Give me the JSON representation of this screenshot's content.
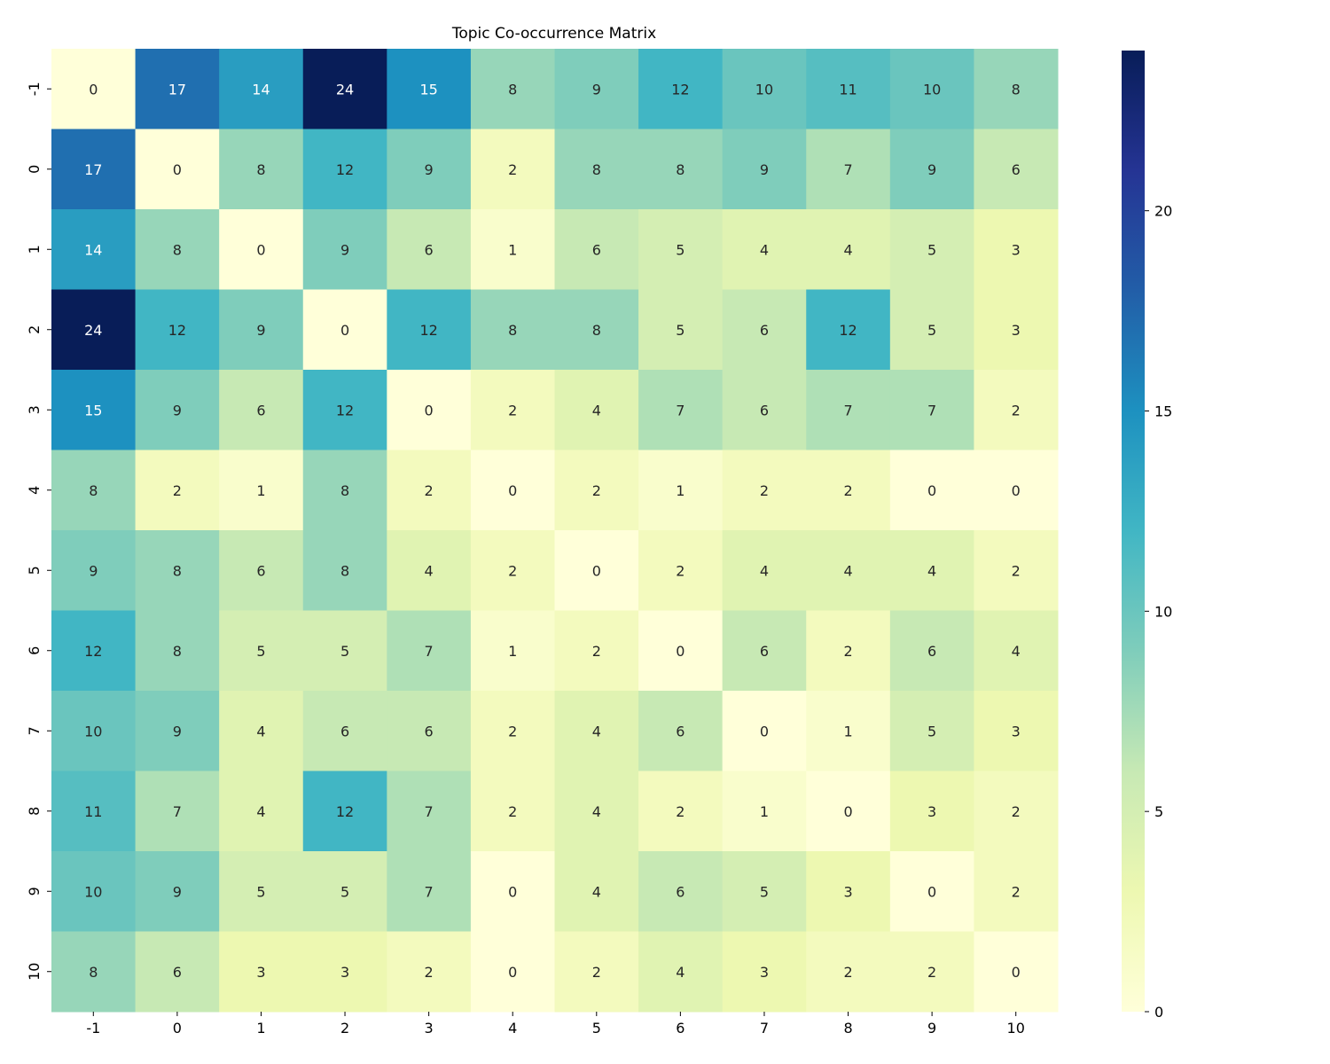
{
  "chart_data": {
    "type": "heatmap",
    "title": "Topic Co-occurrence Matrix",
    "xlabel": "",
    "ylabel": "",
    "x_labels": [
      "-1",
      "0",
      "1",
      "2",
      "3",
      "4",
      "5",
      "6",
      "7",
      "8",
      "9",
      "10"
    ],
    "y_labels": [
      "-1",
      "0",
      "1",
      "2",
      "3",
      "4",
      "5",
      "6",
      "7",
      "8",
      "9",
      "10"
    ],
    "values": [
      [
        0,
        17,
        14,
        24,
        15,
        8,
        9,
        12,
        10,
        11,
        10,
        8
      ],
      [
        17,
        0,
        8,
        12,
        9,
        2,
        8,
        8,
        9,
        7,
        9,
        6
      ],
      [
        14,
        8,
        0,
        9,
        6,
        1,
        6,
        5,
        4,
        4,
        5,
        3
      ],
      [
        24,
        12,
        9,
        0,
        12,
        8,
        8,
        5,
        6,
        12,
        5,
        3
      ],
      [
        15,
        9,
        6,
        12,
        0,
        2,
        4,
        7,
        6,
        7,
        7,
        2
      ],
      [
        8,
        2,
        1,
        8,
        2,
        0,
        2,
        1,
        2,
        2,
        0,
        0
      ],
      [
        9,
        8,
        6,
        8,
        4,
        2,
        0,
        2,
        4,
        4,
        4,
        2
      ],
      [
        12,
        8,
        5,
        5,
        7,
        1,
        2,
        0,
        6,
        2,
        6,
        4
      ],
      [
        10,
        9,
        4,
        6,
        6,
        2,
        4,
        6,
        0,
        1,
        5,
        3
      ],
      [
        11,
        7,
        4,
        12,
        7,
        2,
        4,
        2,
        1,
        0,
        3,
        2
      ],
      [
        10,
        9,
        5,
        5,
        7,
        0,
        4,
        6,
        5,
        3,
        0,
        2
      ],
      [
        8,
        6,
        3,
        3,
        2,
        0,
        2,
        4,
        3,
        2,
        2,
        0
      ]
    ],
    "colormap": "YlGnBu",
    "colormap_stops": [
      "#ffffd9",
      "#edf8b1",
      "#c7e9b4",
      "#7fcdbb",
      "#41b6c4",
      "#1d91c0",
      "#225ea8",
      "#253494",
      "#081d58"
    ],
    "vmin": 0,
    "vmax": 24,
    "colorbar_ticks": [
      0,
      5,
      10,
      15,
      20
    ],
    "annotated": true
  }
}
